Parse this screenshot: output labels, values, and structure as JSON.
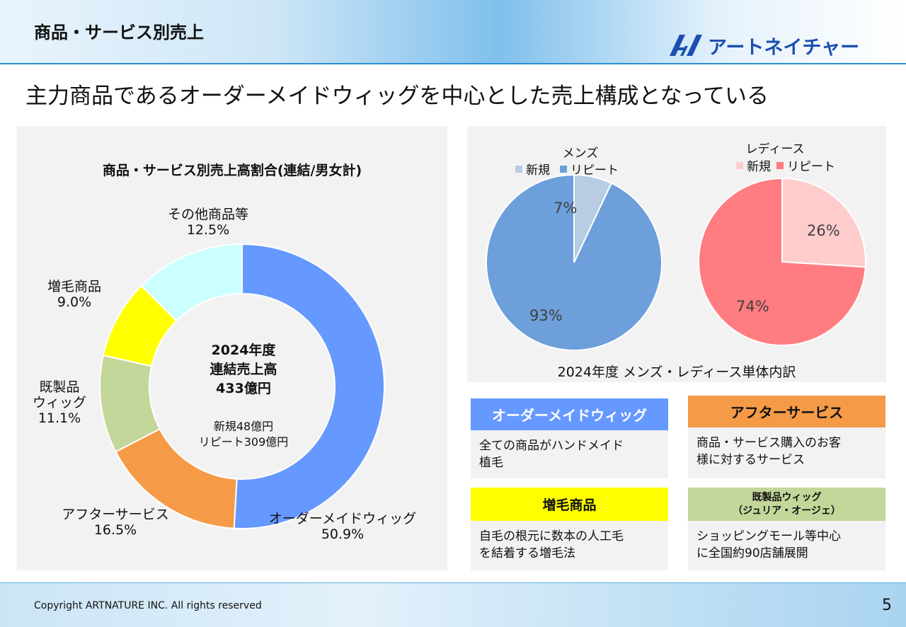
{
  "header": {
    "title": "商品・サービス別売上",
    "logo_text": "アートネイチャー"
  },
  "headline": "主力商品であるオーダーメイドウィッグを中心とした売上構成となっている",
  "colors": {
    "order": "#6699ff",
    "after": "#f59a46",
    "ready": "#c4d79b",
    "growth": "#ffff00",
    "other": "#ccffff",
    "men_new": "#b8cce4",
    "men_repeat": "#6d9fdb",
    "lady_new": "#ffcccc",
    "lady_repeat": "#ff7c80"
  },
  "chart_data": [
    {
      "type": "pie",
      "variant": "donut",
      "title": "商品・サービス別売上高割合(連結/男女計)",
      "center": {
        "line1": "2024年度",
        "line2": "連結売上高",
        "line3": "433億円",
        "sub1": "新規48億円",
        "sub2": "リピート309億円"
      },
      "slices": [
        {
          "name": "オーダーメイドウィッグ",
          "value": 50.9,
          "label": "50.9%",
          "color": "#6699ff"
        },
        {
          "name": "アフターサービス",
          "value": 16.5,
          "label": "16.5%",
          "color": "#f59a46"
        },
        {
          "name_line1": "既製品",
          "name_line2": "ウィッグ",
          "value": 11.1,
          "label": "11.1%",
          "color": "#c4d79b"
        },
        {
          "name": "増毛商品",
          "value": 9.0,
          "label": "9.0%",
          "color": "#ffff00"
        },
        {
          "name": "その他商品等",
          "value": 12.5,
          "label": "12.5%",
          "color": "#ccffff"
        }
      ]
    },
    {
      "type": "pie",
      "title": "メンズ",
      "legend": [
        "新規",
        "リピート"
      ],
      "slices": [
        {
          "name": "新規",
          "value": 7,
          "label": "7%",
          "color": "#b8cce4"
        },
        {
          "name": "リピート",
          "value": 93,
          "label": "93%",
          "color": "#6d9fdb"
        }
      ]
    },
    {
      "type": "pie",
      "title": "レディース",
      "legend": [
        "新規",
        "リピート"
      ],
      "slices": [
        {
          "name": "新規",
          "value": 26,
          "label": "26%",
          "color": "#ffcccc"
        },
        {
          "name": "リピート",
          "value": 74,
          "label": "74%",
          "color": "#ff7c80"
        }
      ]
    }
  ],
  "right_caption": "2024年度 メンズ・レディース単体内訳",
  "cards": {
    "order": {
      "title": "オーダーメイドウィッグ",
      "body1": "全ての商品がハンドメイド",
      "body2": "植毛",
      "bg": "#6699ff",
      "fg": "#ffffff"
    },
    "after": {
      "title": "アフターサービス",
      "body1": "商品・サービス購入のお客",
      "body2": "様に対するサービス",
      "bg": "#f59a46",
      "fg": "#111111"
    },
    "growth": {
      "title": "増毛商品",
      "body1": "自毛の根元に数本の人工毛",
      "body2": "を結着する増毛法",
      "bg": "#ffff00",
      "fg": "#111111"
    },
    "ready": {
      "title1": "既製品ウィッグ",
      "title2": "（ジュリア・オージェ）",
      "body1": "ショッピングモール等中心",
      "body2": "に全国約90店舗展開",
      "bg": "#c4d79b",
      "fg": "#111111"
    }
  },
  "footer": {
    "copyright": "Copyright ARTNATURE INC. All rights reserved",
    "page": "5"
  }
}
